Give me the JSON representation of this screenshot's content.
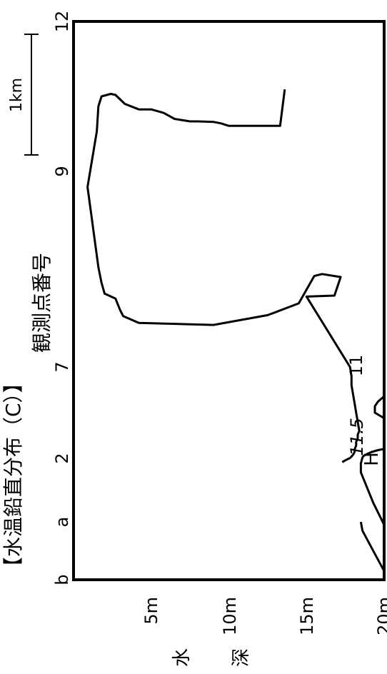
{
  "chart_data": {
    "type": "contour",
    "title": "【水温鉛直分布（C）】",
    "xlabel": "観測点番号",
    "ylabel": "水深",
    "x_ticks": [
      "b",
      "a",
      "2",
      "7",
      "9",
      "12"
    ],
    "y_ticks": [
      "5m",
      "10m",
      "15m",
      "20m"
    ],
    "ylim": [
      0,
      20
    ],
    "scale_bar_label": "1km",
    "high_marker": "H",
    "contours": [
      {
        "level": "11",
        "depth": [
          17.3,
          17.5,
          17.8,
          17.9,
          18,
          18.1,
          18.1,
          18.2,
          18.2,
          18.3,
          18.3,
          18.4,
          18.3,
          18.2,
          18.1,
          18,
          17.9,
          17.9,
          17.8,
          15.0,
          16.8,
          17.2,
          16.0,
          15.5,
          14.5,
          12.5,
          9.0,
          4.2,
          3.2,
          3.0,
          2.7,
          2.0,
          1.8,
          1.6,
          0.9,
          1.5,
          1.6,
          1.8,
          2.4,
          2.7,
          2.8,
          3.3,
          4.2,
          5.0,
          5.8,
          6.5,
          7.5,
          8.0,
          9.0,
          9.5,
          10.0,
          12.0,
          12.5,
          13.2,
          13.3,
          13.6
        ],
        "station": [
          1.94,
          1.97,
          2.02,
          2.1,
          2.2,
          2.35,
          2.5,
          2.7,
          2.9,
          3.1,
          3.3,
          3.5,
          4.0,
          4.5,
          5.0,
          5.5,
          6.0,
          6.5,
          7.0,
          7.72,
          7.73,
          7.92,
          7.95,
          7.93,
          7.65,
          7.53,
          7.43,
          7.45,
          7.52,
          7.58,
          7.7,
          7.75,
          7.86,
          8.02,
          8.84,
          9.8,
          10.3,
          10.5,
          10.55,
          10.53,
          10.5,
          10.35,
          10.24,
          10.24,
          10.17,
          10.05,
          10.0,
          10.0,
          9.99,
          9.96,
          9.91,
          9.91,
          9.91,
          9.91,
          9.91,
          10.64
        ]
      },
      {
        "level": "11.5",
        "depth": [
          20,
          19.3,
          18.8,
          18.5,
          18.5,
          18.6,
          18.7,
          18.9,
          19.2,
          19.6,
          20
        ],
        "station": [
          0.95,
          1.3,
          1.6,
          1.78,
          1.92,
          2.05,
          2.15,
          2.24,
          2.35,
          2.45,
          2.52
        ]
      },
      {
        "level": "",
        "depth": [
          20,
          19.6,
          19.1,
          18.6,
          18.5
        ],
        "station": [
          0.15,
          0.35,
          0.6,
          0.85,
          1.0
        ]
      },
      {
        "level": "",
        "depth": [
          20,
          19.4,
          19.4,
          19.6,
          20
        ],
        "station": [
          4.2,
          4.5,
          4.85,
          5.1,
          5.4
        ]
      }
    ]
  }
}
